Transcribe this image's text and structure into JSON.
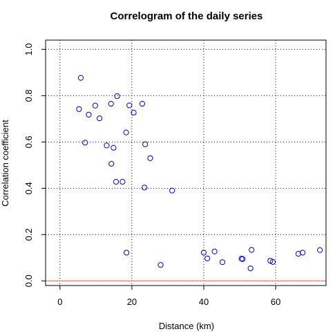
{
  "chart_data": {
    "type": "scatter",
    "title": "Correlogram of the daily series",
    "xlabel": "Distance (km)",
    "ylabel": "Correlation coefficient",
    "xlim": [
      -4,
      74
    ],
    "ylim": [
      -0.02,
      1.04
    ],
    "xticks": [
      0,
      20,
      40,
      60
    ],
    "yticks": [
      0.0,
      0.2,
      0.4,
      0.6,
      0.8,
      1.0
    ],
    "xtick_labels": [
      "0",
      "20",
      "40",
      "60"
    ],
    "ytick_labels": [
      "0.0",
      "0.2",
      "0.4",
      "0.6",
      "0.8",
      "1.0"
    ],
    "grid": true,
    "reference_line": {
      "y": 0,
      "color": "#ff6666"
    },
    "point_color": "#0000cc",
    "points": [
      {
        "x": 5.8,
        "y": 0.877
      },
      {
        "x": 5.3,
        "y": 0.742
      },
      {
        "x": 7.0,
        "y": 0.597
      },
      {
        "x": 8.0,
        "y": 0.718
      },
      {
        "x": 9.8,
        "y": 0.757
      },
      {
        "x": 11.0,
        "y": 0.702
      },
      {
        "x": 13.0,
        "y": 0.585
      },
      {
        "x": 14.2,
        "y": 0.765
      },
      {
        "x": 14.3,
        "y": 0.506
      },
      {
        "x": 14.9,
        "y": 0.575
      },
      {
        "x": 15.6,
        "y": 0.428
      },
      {
        "x": 15.9,
        "y": 0.798
      },
      {
        "x": 17.4,
        "y": 0.428
      },
      {
        "x": 18.4,
        "y": 0.641
      },
      {
        "x": 18.5,
        "y": 0.122
      },
      {
        "x": 19.3,
        "y": 0.758
      },
      {
        "x": 20.5,
        "y": 0.727
      },
      {
        "x": 22.9,
        "y": 0.765
      },
      {
        "x": 23.5,
        "y": 0.403
      },
      {
        "x": 23.7,
        "y": 0.59
      },
      {
        "x": 25.1,
        "y": 0.53
      },
      {
        "x": 28.0,
        "y": 0.069
      },
      {
        "x": 31.2,
        "y": 0.39
      },
      {
        "x": 40.0,
        "y": 0.122
      },
      {
        "x": 41.0,
        "y": 0.097
      },
      {
        "x": 43.0,
        "y": 0.127
      },
      {
        "x": 45.2,
        "y": 0.081
      },
      {
        "x": 50.5,
        "y": 0.096
      },
      {
        "x": 50.8,
        "y": 0.094
      },
      {
        "x": 53.0,
        "y": 0.054
      },
      {
        "x": 53.3,
        "y": 0.134
      },
      {
        "x": 58.5,
        "y": 0.087
      },
      {
        "x": 59.2,
        "y": 0.082
      },
      {
        "x": 66.3,
        "y": 0.117
      },
      {
        "x": 67.5,
        "y": 0.122
      },
      {
        "x": 72.3,
        "y": 0.133
      }
    ]
  }
}
